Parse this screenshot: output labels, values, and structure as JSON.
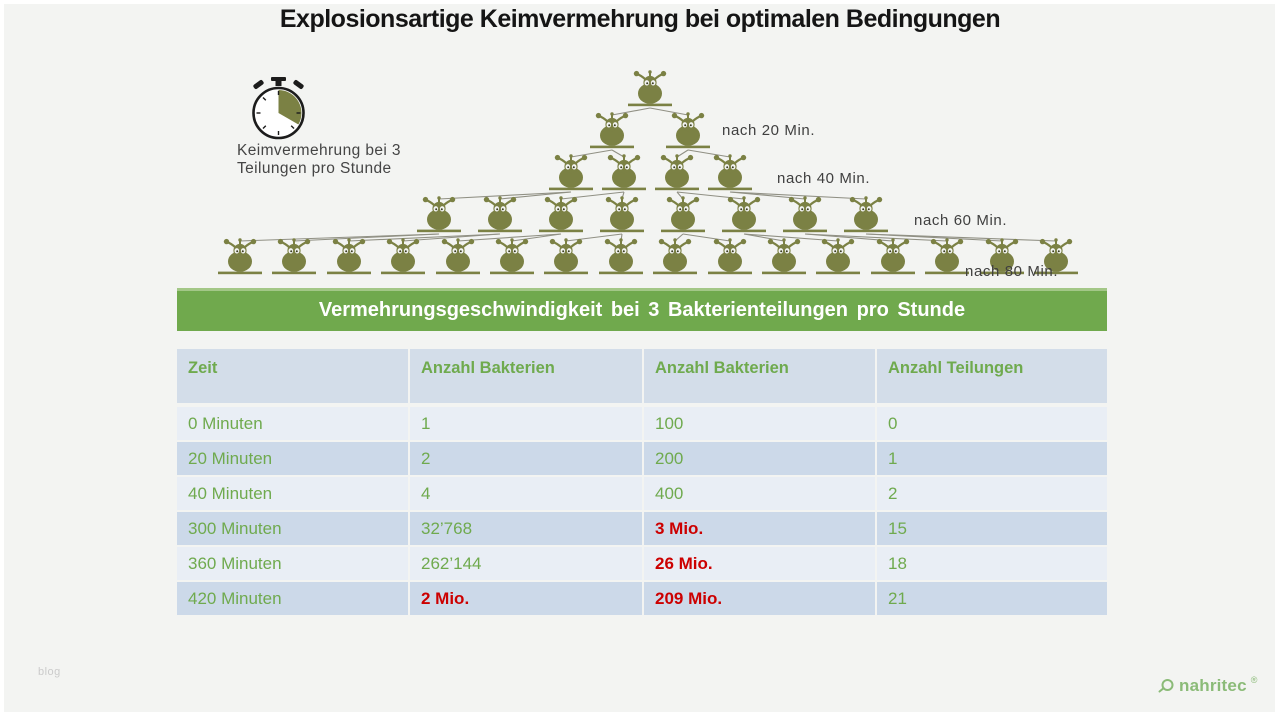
{
  "slide": {
    "title": "Explosionsartige Keimvermehrung bei optimalen Bedingungen",
    "watermark": "blog",
    "logo": {
      "text": "nahritec",
      "registered": "®",
      "color": "#8bbb78"
    }
  },
  "diagram": {
    "stopwatch_icon": "stopwatch with green 20-minute wedge",
    "stopwatch_caption_line1": "Keimvermehrung bei 3",
    "stopwatch_caption_line2": "Teilungen pro Stunde",
    "levels": [
      {
        "count": 1,
        "label": ""
      },
      {
        "count": 2,
        "label": "nach 20 Min."
      },
      {
        "count": 4,
        "label": "nach 40 Min."
      },
      {
        "count": 8,
        "label": "nach 60 Min."
      },
      {
        "count": 16,
        "label": "nach 80 Min."
      }
    ],
    "bacteria_color": "#7b8144",
    "line_color": "#909084"
  },
  "table": {
    "banner": "Vermehrungsgeschwindigkeit bei 3 Bakterienteilungen pro Stunde",
    "banner_color": "#70a94d",
    "green_text": "#6faa4e",
    "red_text": "#cc0000",
    "header_bg": "#d3dde9",
    "row_light_bg": "#e9eef5",
    "row_dark_bg": "#ccd9e9",
    "columns": [
      "Zeit",
      "Anzahl Bakterien",
      "Anzahl Bakterien",
      "Anzahl Teilungen"
    ],
    "rows": [
      {
        "cells": [
          "0 Minuten",
          "1",
          "100",
          "0"
        ],
        "red": [
          false,
          false,
          false,
          false
        ]
      },
      {
        "cells": [
          "20 Minuten",
          "2",
          "200",
          "1"
        ],
        "red": [
          false,
          false,
          false,
          false
        ]
      },
      {
        "cells": [
          "40 Minuten",
          "4",
          "400",
          "2"
        ],
        "red": [
          false,
          false,
          false,
          false
        ]
      },
      {
        "cells": [
          "300 Minuten",
          "32’768",
          "3 Mio.",
          "15"
        ],
        "red": [
          false,
          false,
          true,
          false
        ]
      },
      {
        "cells": [
          "360 Minuten",
          "262’144",
          "26 Mio.",
          "18"
        ],
        "red": [
          false,
          false,
          true,
          false
        ]
      },
      {
        "cells": [
          "420 Minuten",
          "2 Mio.",
          "209 Mio.",
          "21"
        ],
        "red": [
          false,
          true,
          true,
          false
        ]
      }
    ]
  }
}
